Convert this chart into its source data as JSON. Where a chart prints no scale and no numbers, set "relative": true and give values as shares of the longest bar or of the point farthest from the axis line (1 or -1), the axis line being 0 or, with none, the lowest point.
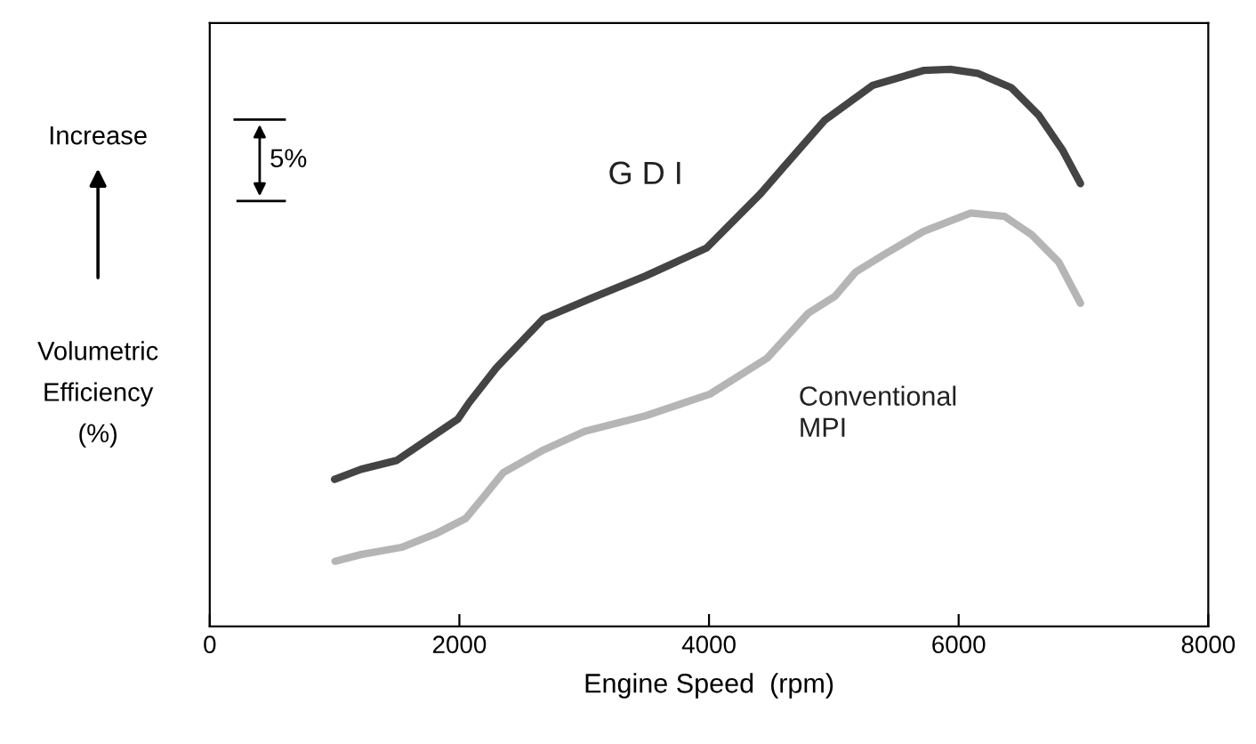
{
  "chart_data": {
    "type": "line",
    "relative": true,
    "xlabel": "Engine Speed  (rpm)",
    "ylabel": "Volumetric\nEfficiency\n(%)",
    "xlim": [
      0,
      8000
    ],
    "xticks": [
      0,
      2000,
      4000,
      6000,
      8000
    ],
    "tick_labels": "x",
    "grid": false,
    "legend": false,
    "marker": "none",
    "line_style": "solid",
    "annotations": [
      "Increase",
      "5%"
    ],
    "series": [
      {
        "name": "G D I",
        "color": "#444444",
        "x": [
          1000,
          1211,
          1498,
          1987,
          2079,
          2296,
          2676,
          3056,
          3491,
          3979,
          4414,
          4604,
          4929,
          5309,
          5717,
          5934,
          6151,
          6422,
          6640,
          6830,
          6976
        ],
        "values": [
          0.264,
          0.282,
          0.298,
          0.372,
          0.402,
          0.464,
          0.553,
          0.589,
          0.629,
          0.679,
          0.777,
          0.826,
          0.909,
          0.971,
          0.998,
          1.0,
          0.993,
          0.967,
          0.918,
          0.856,
          0.795
        ]
      },
      {
        "name": "Conventional\nMPI",
        "color": "#b5b5b5",
        "x": [
          1004,
          1211,
          1536,
          1808,
          2052,
          2188,
          2351,
          2676,
          3002,
          3491,
          4007,
          4468,
          4794,
          5011,
          5174,
          5391,
          5717,
          6097,
          6368,
          6585,
          6802,
          6976
        ],
        "values": [
          0.117,
          0.129,
          0.142,
          0.166,
          0.194,
          0.231,
          0.276,
          0.317,
          0.35,
          0.378,
          0.417,
          0.482,
          0.562,
          0.593,
          0.636,
          0.666,
          0.709,
          0.742,
          0.736,
          0.703,
          0.654,
          0.58
        ]
      }
    ]
  }
}
